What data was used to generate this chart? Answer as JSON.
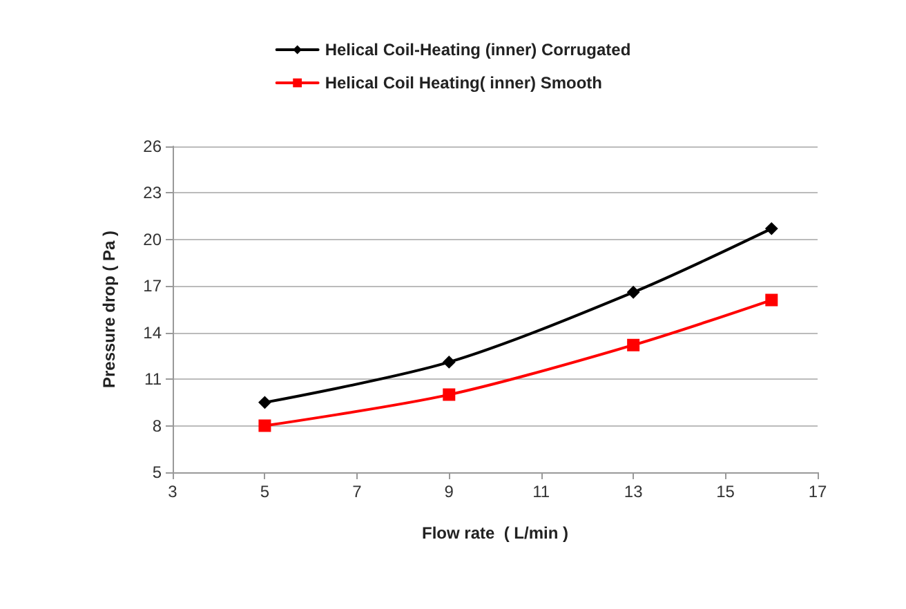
{
  "chart_data": {
    "type": "line",
    "xlabel": "Flow rate  ( L/min )",
    "ylabel": "Pressure drop ( Pa )",
    "x": [
      5,
      9,
      13,
      16
    ],
    "series": [
      {
        "name": "Helical Coil-Heating (inner) Corrugated",
        "color": "#000000",
        "marker": "diamond",
        "values": [
          9.5,
          12.1,
          16.6,
          20.7
        ]
      },
      {
        "name": "Helical Coil Heating( inner) Smooth",
        "color": "#ff0000",
        "marker": "square",
        "values": [
          8.0,
          10.0,
          13.2,
          16.1
        ]
      }
    ],
    "xlim": [
      3,
      17
    ],
    "xticks": [
      3,
      5,
      7,
      9,
      11,
      13,
      15,
      17
    ],
    "ylim": [
      5,
      26
    ],
    "yticks": [
      5,
      8,
      11,
      14,
      17,
      20,
      23,
      26
    ],
    "grid": "y",
    "legend": "top"
  }
}
